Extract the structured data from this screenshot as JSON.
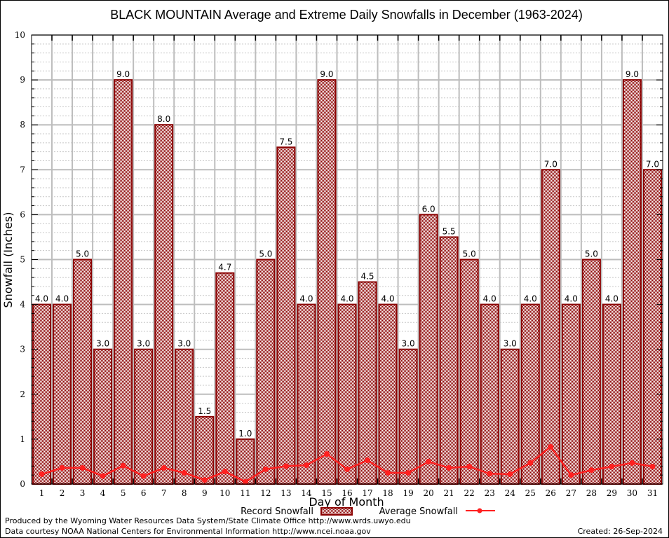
{
  "chart_data": {
    "type": "bar",
    "title": "BLACK MOUNTAIN Average and Extreme Daily Snowfalls in December (1963-2024)",
    "xlabel": "Day of Month",
    "ylabel": "Snowfall (Inches)",
    "ylim": [
      0,
      10
    ],
    "yticks": [
      "0",
      "1",
      "2",
      "3",
      "4",
      "5",
      "6",
      "7",
      "8",
      "9",
      "10"
    ],
    "grid": true,
    "legend_position": "bottom-center",
    "categories": [
      "1",
      "2",
      "3",
      "4",
      "5",
      "6",
      "7",
      "8",
      "9",
      "10",
      "11",
      "12",
      "13",
      "14",
      "15",
      "16",
      "17",
      "18",
      "19",
      "20",
      "21",
      "22",
      "23",
      "24",
      "25",
      "26",
      "27",
      "28",
      "29",
      "30",
      "31"
    ],
    "series": [
      {
        "name": "Record Snowfall",
        "type": "bar",
        "color": "#8b0000",
        "values": [
          4.0,
          4.0,
          5.0,
          3.0,
          9.0,
          3.0,
          8.0,
          3.0,
          1.5,
          4.7,
          1.0,
          5.0,
          7.5,
          4.0,
          9.0,
          4.0,
          4.5,
          4.0,
          3.0,
          6.0,
          5.5,
          5.0,
          4.0,
          3.0,
          4.0,
          7.0,
          4.0,
          5.0,
          4.0,
          9.0,
          7.0
        ],
        "labels": [
          "4.0",
          "4.0",
          "5.0",
          "3.0",
          "9.0",
          "3.0",
          "8.0",
          "3.0",
          "1.5",
          "4.7",
          "1.0",
          "5.0",
          "7.5",
          "4.0",
          "9.0",
          "4.0",
          "4.5",
          "4.0",
          "3.0",
          "6.0",
          "5.5",
          "5.0",
          "4.0",
          "3.0",
          "4.0",
          "7.0",
          "4.0",
          "5.0",
          "4.0",
          "9.0",
          "7.0"
        ]
      },
      {
        "name": "Average Snowfall",
        "type": "line",
        "color": "#ff2020",
        "values": [
          0.22,
          0.36,
          0.36,
          0.18,
          0.41,
          0.18,
          0.36,
          0.25,
          0.09,
          0.28,
          0.05,
          0.33,
          0.4,
          0.42,
          0.67,
          0.33,
          0.53,
          0.25,
          0.25,
          0.5,
          0.36,
          0.39,
          0.23,
          0.22,
          0.47,
          0.83,
          0.2,
          0.31,
          0.39,
          0.47,
          0.39
        ]
      }
    ]
  },
  "legend": {
    "record_label": "Record Snowfall",
    "average_label": "Average Snowfall"
  },
  "footer": {
    "produced_by": "Produced by the Wyoming Water Resources Data System/State Climate Office http://www.wrds.uwyo.edu",
    "data_courtesy": "Data courtesy NOAA National Centers for Environmental Information http://www.ncei.noaa.gov",
    "created": "Created: 26-Sep-2024"
  }
}
